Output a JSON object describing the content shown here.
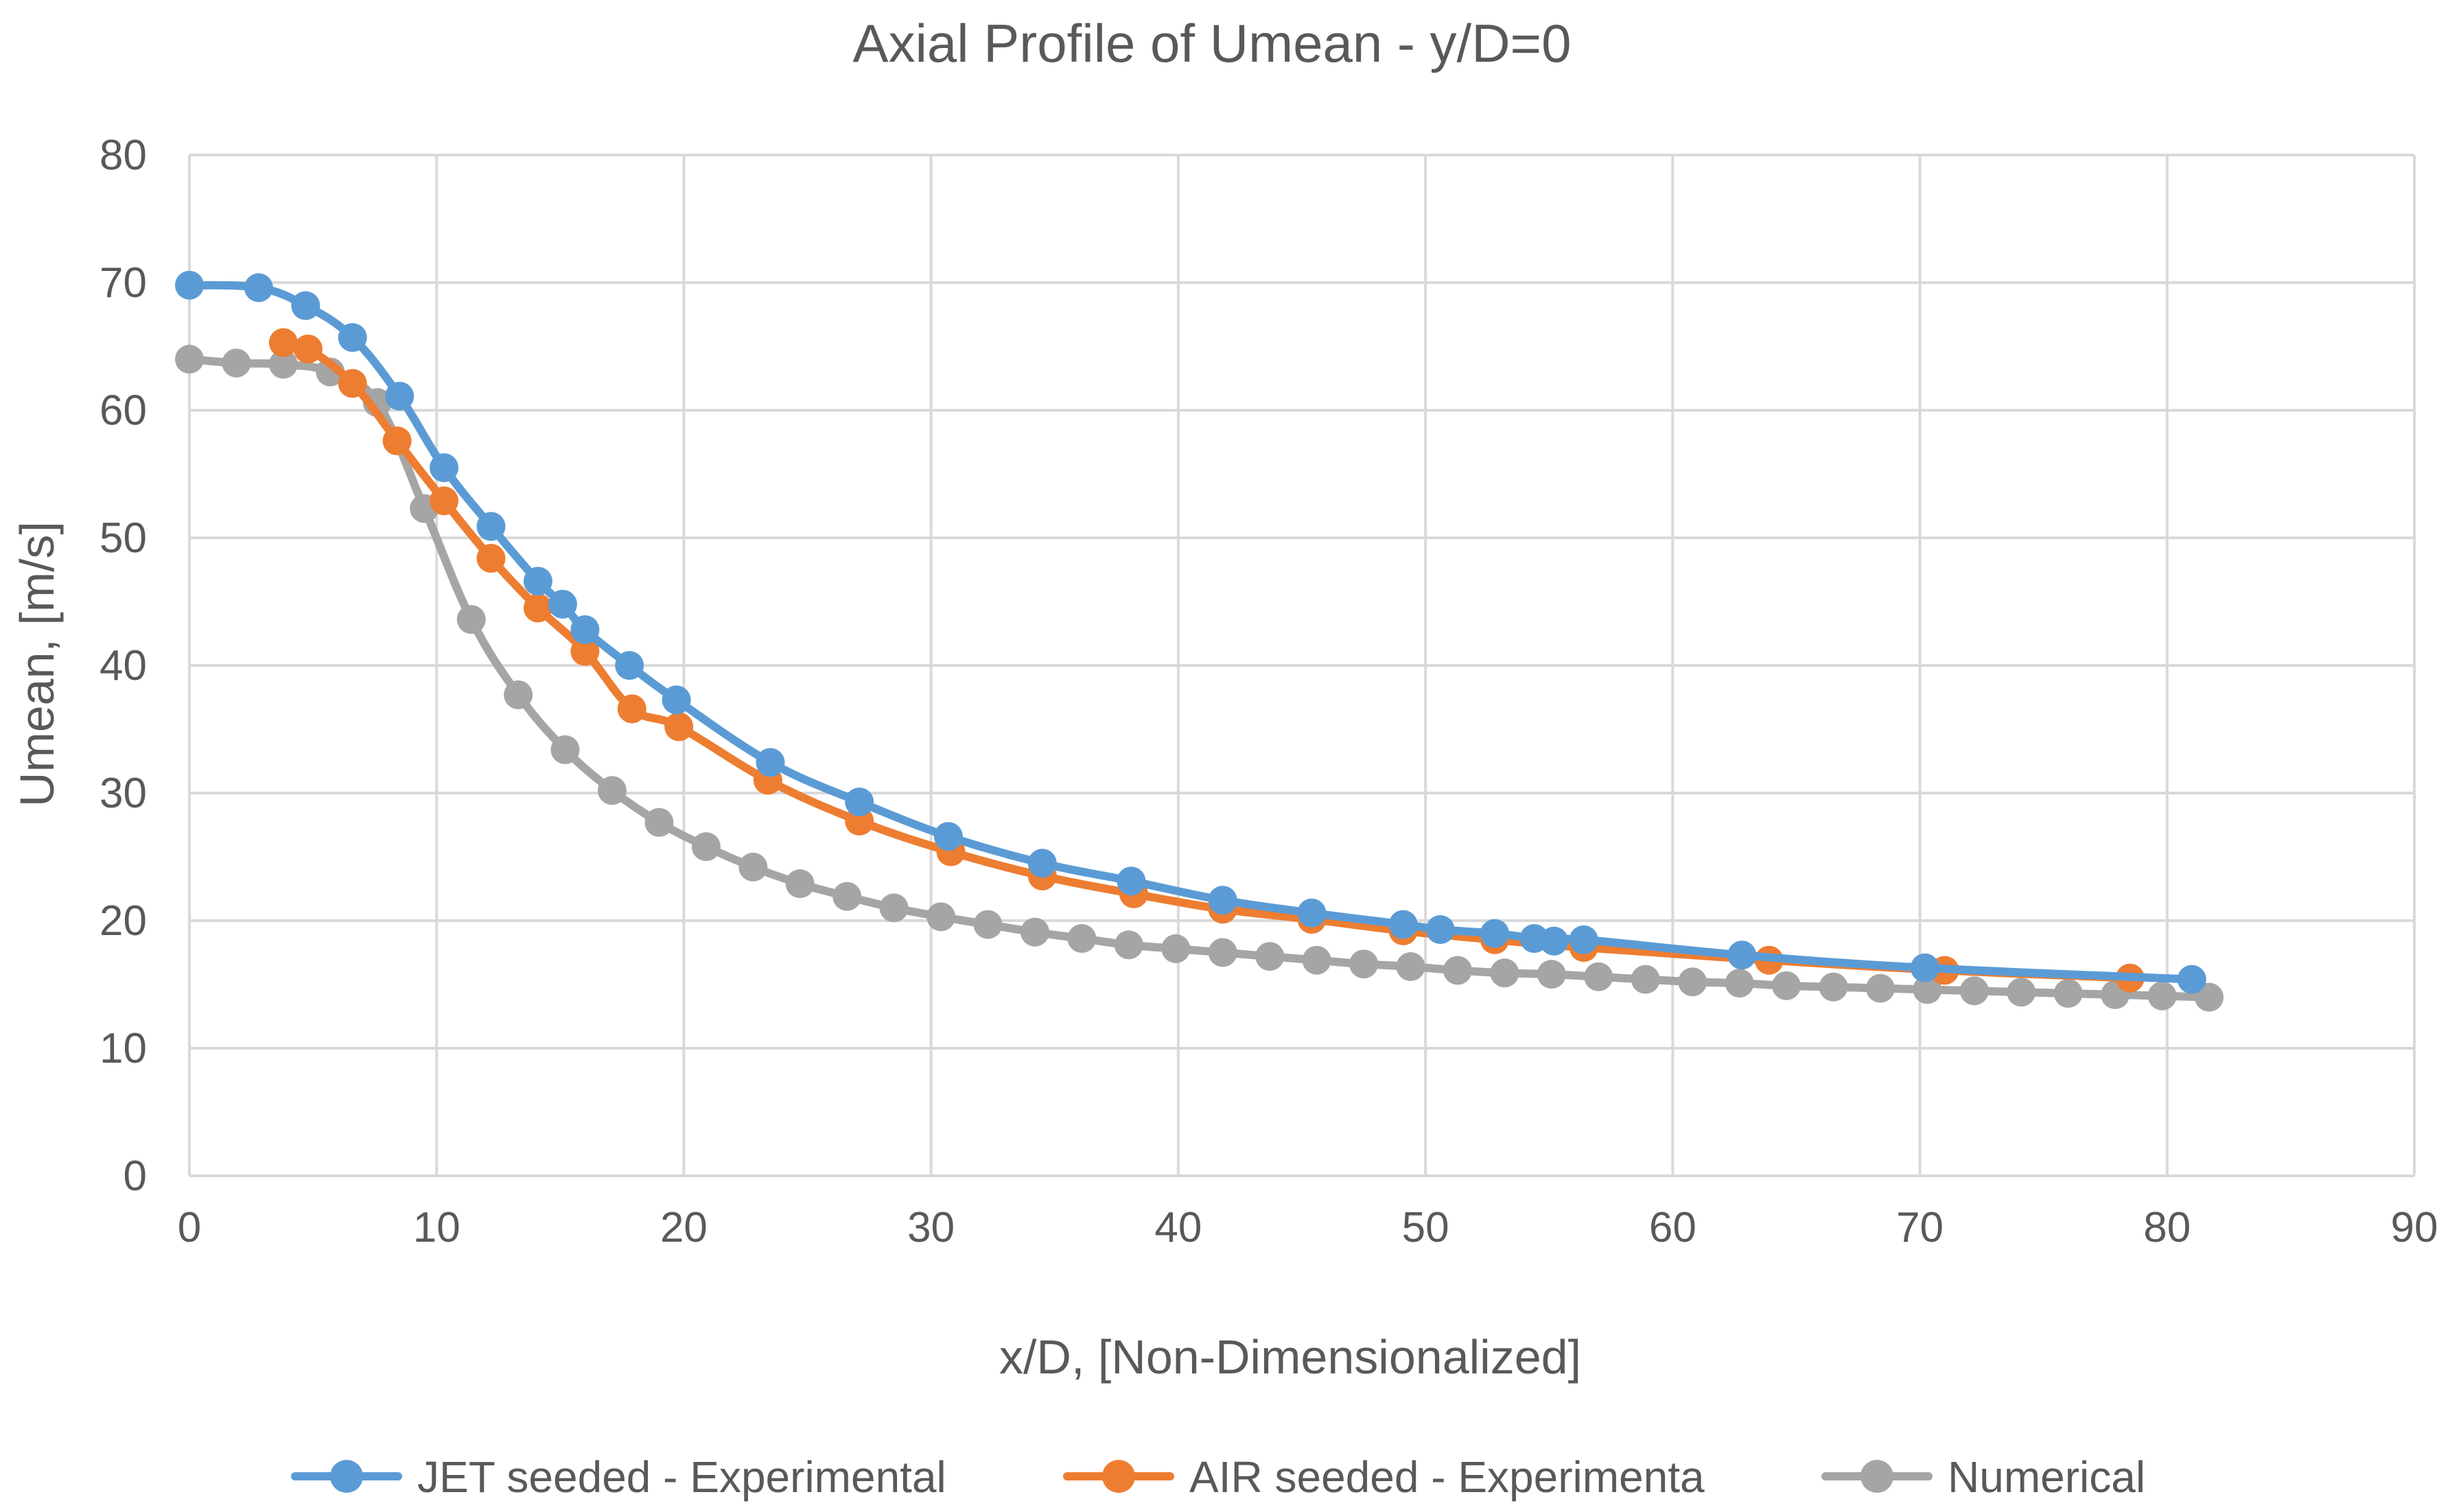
{
  "chart_data": {
    "type": "line",
    "title": "Axial Profile of Umean - y/D=0",
    "xlabel": "x/D, [Non-Dimensionalized]",
    "ylabel": "Umean, [m/s]",
    "xlim": [
      0,
      90
    ],
    "ylim": [
      0,
      80
    ],
    "x_ticks": [
      0,
      10,
      20,
      30,
      40,
      50,
      60,
      70,
      80,
      90
    ],
    "y_ticks": [
      0,
      10,
      20,
      30,
      40,
      50,
      60,
      70,
      80
    ],
    "x_tick_labels": [
      "0",
      "10",
      "20",
      "30",
      "40",
      "50",
      "60",
      "70",
      "80",
      "90"
    ],
    "y_tick_labels": [
      "0",
      "10",
      "20",
      "30",
      "40",
      "50",
      "60",
      "70",
      "80"
    ],
    "grid": true,
    "legend_position": "bottom",
    "series": [
      {
        "name": "JET seeded - Experimental",
        "color": "#5b9bd5",
        "points": [
          [
            0,
            69.8
          ],
          [
            2.8,
            69.6
          ],
          [
            4.7,
            68.2
          ],
          [
            6.6,
            65.7
          ],
          [
            8.5,
            61.1
          ],
          [
            10.3,
            55.5
          ],
          [
            12.2,
            50.9
          ],
          [
            14.1,
            46.6
          ],
          [
            15.1,
            44.8
          ],
          [
            16.0,
            42.8
          ],
          [
            17.8,
            40.0
          ],
          [
            19.7,
            37.3
          ],
          [
            23.5,
            32.4
          ],
          [
            27.1,
            29.3
          ],
          [
            30.7,
            26.6
          ],
          [
            34.5,
            24.5
          ],
          [
            38.1,
            23.1
          ],
          [
            41.8,
            21.6
          ],
          [
            45.4,
            20.6
          ],
          [
            49.1,
            19.7
          ],
          [
            50.6,
            19.3
          ],
          [
            52.8,
            19.0
          ],
          [
            54.4,
            18.6
          ],
          [
            55.2,
            18.4
          ],
          [
            56.4,
            18.5
          ],
          [
            62.8,
            17.3
          ],
          [
            70.2,
            16.3
          ],
          [
            81.0,
            15.4
          ]
        ]
      },
      {
        "name": "AIR seeded - Experimenta",
        "color": "#ed7d31",
        "points": [
          [
            3.8,
            65.3
          ],
          [
            4.8,
            64.8
          ],
          [
            6.6,
            62.1
          ],
          [
            8.4,
            57.6
          ],
          [
            10.3,
            52.9
          ],
          [
            12.2,
            48.4
          ],
          [
            14.1,
            44.5
          ],
          [
            16.0,
            41.1
          ],
          [
            17.9,
            36.6
          ],
          [
            19.8,
            35.2
          ],
          [
            23.4,
            31.0
          ],
          [
            27.1,
            27.8
          ],
          [
            30.8,
            25.4
          ],
          [
            34.5,
            23.5
          ],
          [
            38.2,
            22.1
          ],
          [
            41.8,
            20.9
          ],
          [
            45.4,
            20.1
          ],
          [
            49.1,
            19.2
          ],
          [
            52.8,
            18.5
          ],
          [
            56.4,
            17.9
          ],
          [
            63.9,
            16.9
          ],
          [
            71.0,
            16.1
          ],
          [
            78.5,
            15.5
          ]
        ]
      },
      {
        "name": "Numerical",
        "color": "#a5a5a5",
        "points": [
          [
            0,
            64.0
          ],
          [
            1.9,
            63.7
          ],
          [
            3.8,
            63.6
          ],
          [
            5.7,
            63.0
          ],
          [
            7.6,
            60.6
          ],
          [
            9.5,
            52.3
          ],
          [
            11.4,
            43.6
          ],
          [
            13.3,
            37.7
          ],
          [
            15.2,
            33.4
          ],
          [
            17.1,
            30.2
          ],
          [
            19.0,
            27.7
          ],
          [
            20.9,
            25.8
          ],
          [
            22.8,
            24.2
          ],
          [
            24.7,
            22.9
          ],
          [
            26.6,
            21.9
          ],
          [
            28.5,
            21.0
          ],
          [
            30.4,
            20.3
          ],
          [
            32.3,
            19.7
          ],
          [
            34.2,
            19.1
          ],
          [
            36.1,
            18.6
          ],
          [
            38.0,
            18.1
          ],
          [
            39.9,
            17.8
          ],
          [
            41.8,
            17.5
          ],
          [
            43.7,
            17.2
          ],
          [
            45.6,
            16.9
          ],
          [
            47.5,
            16.6
          ],
          [
            49.4,
            16.4
          ],
          [
            51.3,
            16.1
          ],
          [
            53.2,
            15.9
          ],
          [
            55.1,
            15.8
          ],
          [
            57.0,
            15.6
          ],
          [
            58.9,
            15.4
          ],
          [
            60.8,
            15.2
          ],
          [
            62.7,
            15.1
          ],
          [
            64.6,
            14.9
          ],
          [
            66.5,
            14.8
          ],
          [
            68.4,
            14.7
          ],
          [
            70.3,
            14.6
          ],
          [
            72.2,
            14.5
          ],
          [
            74.1,
            14.4
          ],
          [
            76.0,
            14.3
          ],
          [
            77.9,
            14.2
          ],
          [
            79.8,
            14.1
          ],
          [
            81.7,
            14.0
          ]
        ]
      }
    ]
  }
}
